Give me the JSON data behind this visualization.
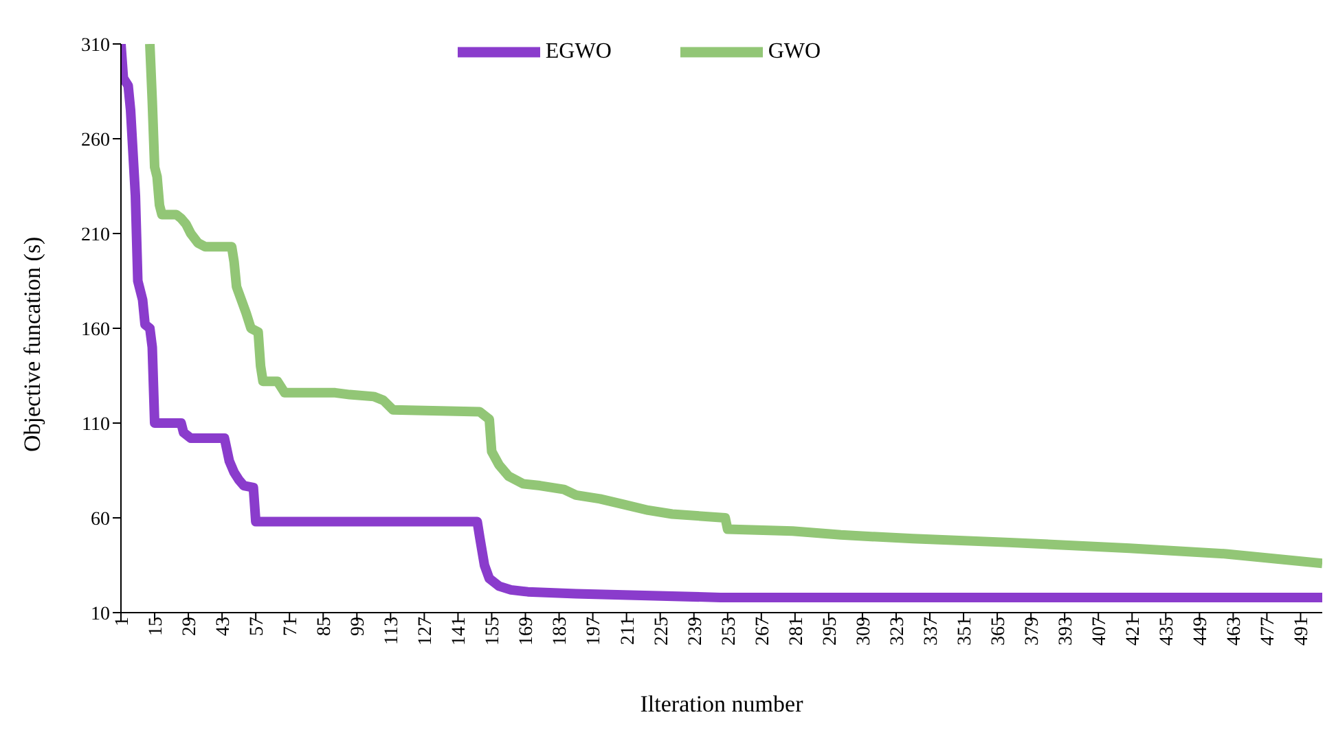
{
  "chart_data": {
    "type": "line",
    "xlabel": "Ilteration number",
    "ylabel": "Objective funcation (s)",
    "xlim": [
      1,
      500
    ],
    "xticks": [
      1,
      15,
      29,
      43,
      57,
      71,
      85,
      99,
      113,
      127,
      141,
      155,
      169,
      183,
      197,
      211,
      225,
      239,
      253,
      267,
      281,
      295,
      309,
      323,
      337,
      351,
      365,
      379,
      393,
      407,
      421,
      435,
      449,
      463,
      477,
      491
    ],
    "ylim": [
      10,
      310
    ],
    "yticks": [
      10,
      60,
      110,
      160,
      210,
      260,
      310
    ],
    "grid": false,
    "legend": "top",
    "marker": "none",
    "line_style": "solid",
    "series": [
      {
        "name": "EGWO",
        "color": "#8a3ccc",
        "x": [
          1,
          2,
          4,
          5,
          7,
          8,
          10,
          11,
          13,
          14,
          15,
          22,
          26,
          27,
          30,
          44,
          46,
          48,
          50,
          52,
          56,
          57,
          60,
          149,
          150,
          152,
          154,
          158,
          163,
          170,
          190,
          250,
          300,
          500
        ],
        "values": [
          310,
          292,
          288,
          275,
          230,
          185,
          175,
          162,
          160,
          150,
          110,
          110,
          110,
          105,
          102,
          102,
          90,
          84,
          80,
          77,
          76,
          58,
          58,
          58,
          50,
          35,
          28,
          24,
          22,
          21,
          20,
          18,
          18,
          18
        ]
      },
      {
        "name": "GWO",
        "color": "#92c676",
        "x": [
          13,
          14,
          15,
          16,
          17,
          18,
          24,
          26,
          28,
          30,
          33,
          36,
          47,
          48,
          49,
          51,
          53,
          55,
          58,
          59,
          60,
          66,
          69,
          90,
          96,
          106,
          110,
          114,
          150,
          152,
          154,
          155,
          158,
          162,
          168,
          175,
          185,
          190,
          200,
          210,
          220,
          230,
          252,
          253,
          280,
          300,
          330,
          370,
          420,
          460,
          500
        ],
        "values": [
          310,
          280,
          245,
          240,
          225,
          220,
          220,
          218,
          215,
          210,
          205,
          203,
          203,
          195,
          182,
          175,
          168,
          160,
          158,
          140,
          132,
          132,
          126,
          126,
          125,
          124,
          122,
          117,
          116,
          114,
          112,
          95,
          88,
          82,
          78,
          77,
          75,
          72,
          70,
          67,
          64,
          62,
          60,
          54,
          53,
          51,
          49,
          47,
          44,
          41,
          36
        ]
      }
    ]
  }
}
